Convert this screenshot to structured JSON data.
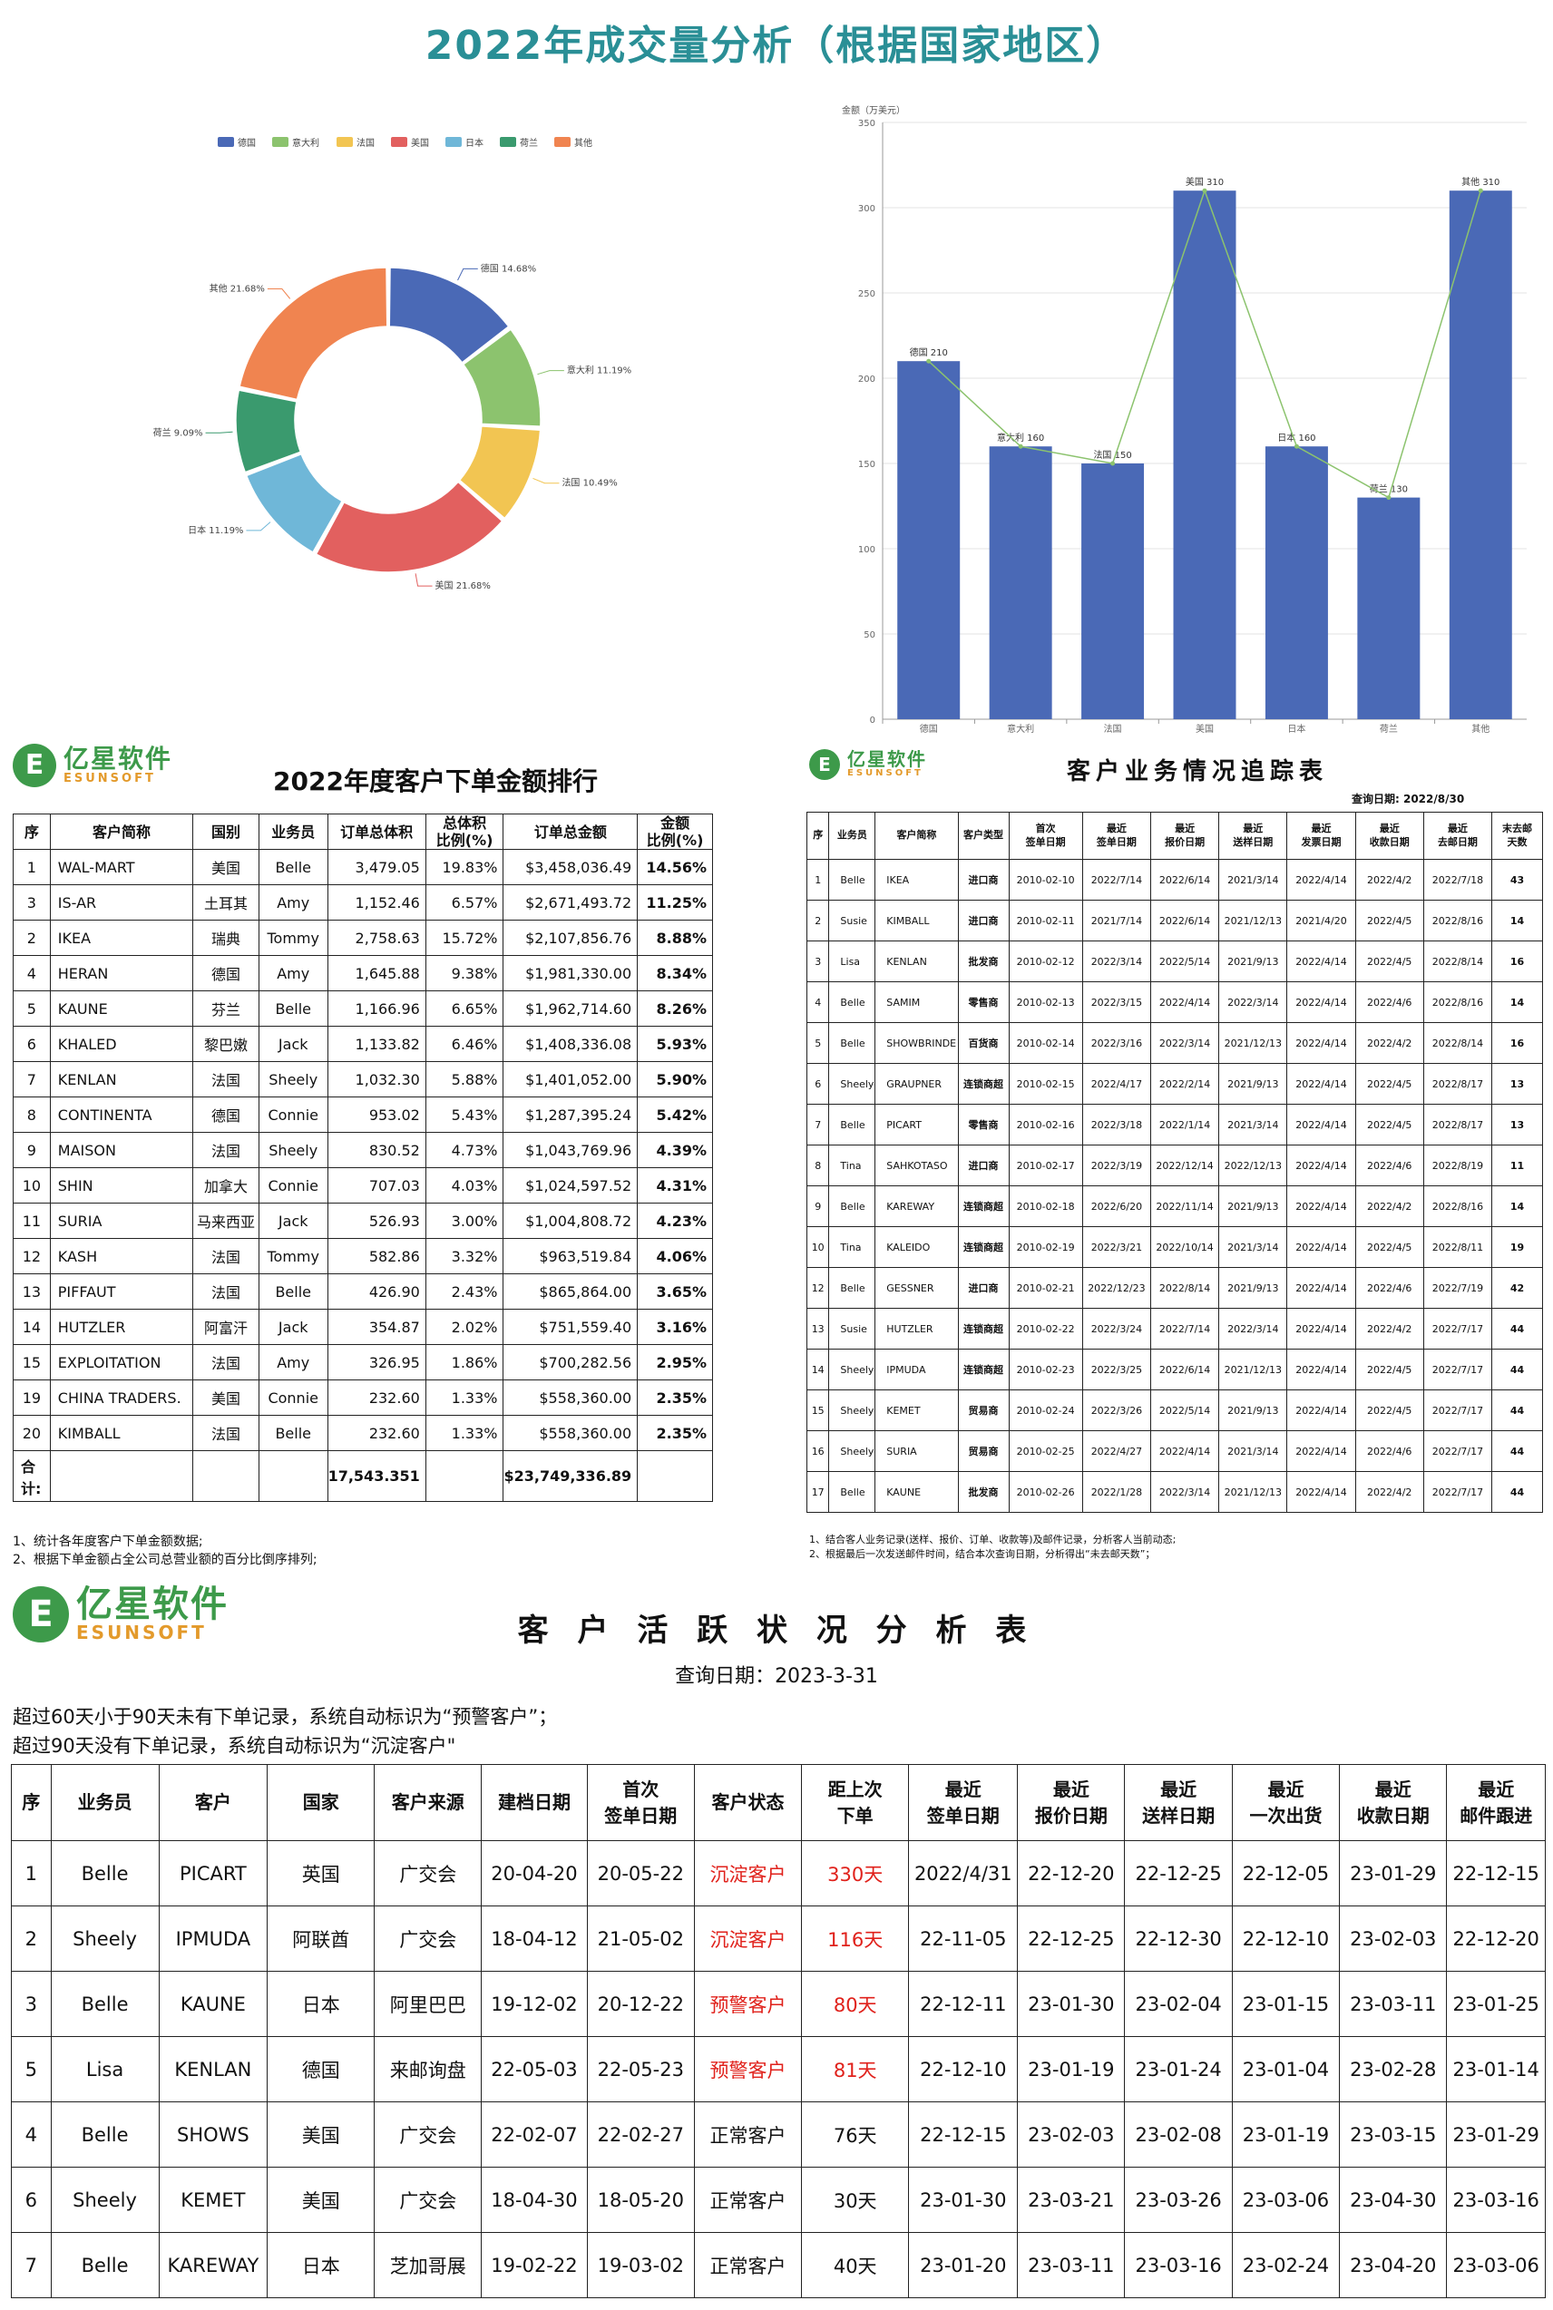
{
  "main_title": "2022年成交量分析（根据国家地区）",
  "chart_data": [
    {
      "type": "pie",
      "legend": [
        "德国",
        "意大利",
        "法国",
        "美国",
        "日本",
        "荷兰",
        "其他"
      ],
      "slices": [
        {
          "name": "德国",
          "value": 14.68,
          "label": "德国 14.68%",
          "color": "#4a69b6"
        },
        {
          "name": "意大利",
          "value": 11.19,
          "label": "意大利 11.19%",
          "color": "#8cc36e"
        },
        {
          "name": "法国",
          "value": 10.49,
          "label": "法国 10.49%",
          "color": "#f2c552"
        },
        {
          "name": "美国",
          "value": 21.68,
          "label": "美国 21.68%",
          "color": "#e2605f"
        },
        {
          "name": "日本",
          "value": 11.19,
          "label": "日本 11.19%",
          "color": "#6fb7d8"
        },
        {
          "name": "荷兰",
          "value": 9.09,
          "label": "荷兰 9.09%",
          "color": "#3a9a6e"
        },
        {
          "name": "其他",
          "value": 21.68,
          "label": "其他 21.68%",
          "color": "#f08450"
        }
      ],
      "legend_position": "top"
    },
    {
      "type": "bar",
      "ylabel": "金额（万美元）",
      "ylim": [
        0,
        350
      ],
      "yticks": [
        0,
        50,
        100,
        150,
        200,
        250,
        300,
        350
      ],
      "categories": [
        "德国",
        "意大利",
        "法国",
        "美国",
        "日本",
        "荷兰",
        "其他"
      ],
      "values": [
        210,
        160,
        150,
        310,
        160,
        130,
        310
      ],
      "data_labels": [
        "德国 210",
        "意大利 160",
        "法国 150",
        "美国 310",
        "日本 160",
        "荷兰 130",
        "其他 310"
      ],
      "bar_color": "#4a69b6",
      "line_color": "#8cc36e",
      "grid": true
    }
  ],
  "logo": {
    "cn": "亿星软件",
    "en": "ESUNSOFT"
  },
  "rank": {
    "title": "2022年度客户下单金额排行",
    "headers": [
      "序",
      "客户简称",
      "国别",
      "业务员",
      "订单总体积",
      "总体积\n比例(%)",
      "订单总金额",
      "金额\n比例(%)"
    ],
    "rows": [
      [
        "1",
        "WAL-MART",
        "美国",
        "Belle",
        "3,479.05",
        "19.83%",
        "$3,458,036.49",
        "14.56%"
      ],
      [
        "3",
        "IS-AR",
        "土耳其",
        "Amy",
        "1,152.46",
        "6.57%",
        "$2,671,493.72",
        "11.25%"
      ],
      [
        "2",
        "IKEA",
        "瑞典",
        "Tommy",
        "2,758.63",
        "15.72%",
        "$2,107,856.76",
        "8.88%"
      ],
      [
        "4",
        "HERAN",
        "德国",
        "Amy",
        "1,645.88",
        "9.38%",
        "$1,981,330.00",
        "8.34%"
      ],
      [
        "5",
        "KAUNE",
        "芬兰",
        "Belle",
        "1,166.96",
        "6.65%",
        "$1,962,714.60",
        "8.26%"
      ],
      [
        "6",
        "KHALED",
        "黎巴嫩",
        "Jack",
        "1,133.82",
        "6.46%",
        "$1,408,336.08",
        "5.93%"
      ],
      [
        "7",
        "KENLAN",
        "法国",
        "Sheely",
        "1,032.30",
        "5.88%",
        "$1,401,052.00",
        "5.90%"
      ],
      [
        "8",
        "CONTINENTA",
        "德国",
        "Connie",
        "953.02",
        "5.43%",
        "$1,287,395.24",
        "5.42%"
      ],
      [
        "9",
        "MAISON",
        "法国",
        "Sheely",
        "830.52",
        "4.73%",
        "$1,043,769.96",
        "4.39%"
      ],
      [
        "10",
        "SHIN",
        "加拿大",
        "Connie",
        "707.03",
        "4.03%",
        "$1,024,597.52",
        "4.31%"
      ],
      [
        "11",
        "SURIA",
        "马来西亚",
        "Jack",
        "526.93",
        "3.00%",
        "$1,004,808.72",
        "4.23%"
      ],
      [
        "12",
        "KASH",
        "法国",
        "Tommy",
        "582.86",
        "3.32%",
        "$963,519.84",
        "4.06%"
      ],
      [
        "13",
        "PIFFAUT",
        "法国",
        "Belle",
        "426.90",
        "2.43%",
        "$865,864.00",
        "3.65%"
      ],
      [
        "14",
        "HUTZLER",
        "阿富汗",
        "Jack",
        "354.87",
        "2.02%",
        "$751,559.40",
        "3.16%"
      ],
      [
        "15",
        "EXPLOITATION",
        "法国",
        "Amy",
        "326.95",
        "1.86%",
        "$700,282.56",
        "2.95%"
      ],
      [
        "19",
        "CHINA TRADERS.",
        "美国",
        "Connie",
        "232.60",
        "1.33%",
        "$558,360.00",
        "2.35%"
      ],
      [
        "20",
        "KIMBALL",
        "法国",
        "Belle",
        "232.60",
        "1.33%",
        "$558,360.00",
        "2.35%"
      ]
    ],
    "total_label": "合计:",
    "total_volume": "17,543.351",
    "total_amount": "$23,749,336.89",
    "notes": [
      "1、统计各年度客户下单金额数据;",
      "2、根据下单金额占全公司总营业额的百分比倒序排列;"
    ]
  },
  "track": {
    "title": "客户业务情况追踪表",
    "query_date": "查询日期:   2022/8/30",
    "headers": [
      "序",
      "业务员",
      "客户简称",
      "客户类型",
      "首次\n签单日期",
      "最近\n签单日期",
      "最近\n报价日期",
      "最近\n送样日期",
      "最近\n发票日期",
      "最近\n收款日期",
      "最近\n去邮日期",
      "末去邮\n天数"
    ],
    "rows": [
      [
        "1",
        "Belle",
        "IKEA",
        "进口商",
        "2010-02-10",
        "2022/7/14",
        "2022/6/14",
        "2021/3/14",
        "2022/4/14",
        "2022/4/2",
        "2022/7/18",
        "43"
      ],
      [
        "2",
        "Susie",
        "KIMBALL",
        "进口商",
        "2010-02-11",
        "2021/7/14",
        "2022/6/14",
        "2021/12/13",
        "2021/4/20",
        "2022/4/5",
        "2022/8/16",
        "14"
      ],
      [
        "3",
        "Lisa",
        "KENLAN",
        "批发商",
        "2010-02-12",
        "2022/3/14",
        "2022/5/14",
        "2021/9/13",
        "2022/4/14",
        "2022/4/5",
        "2022/8/14",
        "16"
      ],
      [
        "4",
        "Belle",
        "SAMIM",
        "零售商",
        "2010-02-13",
        "2022/3/15",
        "2022/4/14",
        "2022/3/14",
        "2022/4/14",
        "2022/4/6",
        "2022/8/16",
        "14"
      ],
      [
        "5",
        "Belle",
        "SHOWBRINDE",
        "百货商",
        "2010-02-14",
        "2022/3/16",
        "2022/3/14",
        "2021/12/13",
        "2022/4/14",
        "2022/4/2",
        "2022/8/14",
        "16"
      ],
      [
        "6",
        "Sheely",
        "GRAUPNER",
        "连锁商超",
        "2010-02-15",
        "2022/4/17",
        "2022/2/14",
        "2021/9/13",
        "2022/4/14",
        "2022/4/5",
        "2022/8/17",
        "13"
      ],
      [
        "7",
        "Belle",
        "PICART",
        "零售商",
        "2010-02-16",
        "2022/3/18",
        "2022/1/14",
        "2021/3/14",
        "2022/4/14",
        "2022/4/5",
        "2022/8/17",
        "13"
      ],
      [
        "8",
        "Tina",
        "SAHKOTASO",
        "进口商",
        "2010-02-17",
        "2022/3/19",
        "2022/12/14",
        "2022/12/13",
        "2022/4/14",
        "2022/4/6",
        "2022/8/19",
        "11"
      ],
      [
        "9",
        "Belle",
        "KAREWAY",
        "连锁商超",
        "2010-02-18",
        "2022/6/20",
        "2022/11/14",
        "2021/9/13",
        "2022/4/14",
        "2022/4/2",
        "2022/8/16",
        "14"
      ],
      [
        "10",
        "Tina",
        "KALEIDO",
        "连锁商超",
        "2010-02-19",
        "2022/3/21",
        "2022/10/14",
        "2021/3/14",
        "2022/4/14",
        "2022/4/5",
        "2022/8/11",
        "19"
      ],
      [
        "12",
        "Belle",
        "GESSNER",
        "进口商",
        "2010-02-21",
        "2022/12/23",
        "2022/8/14",
        "2021/9/13",
        "2022/4/14",
        "2022/4/6",
        "2022/7/19",
        "42"
      ],
      [
        "13",
        "Susie",
        "HUTZLER",
        "连锁商超",
        "2010-02-22",
        "2022/3/24",
        "2022/7/14",
        "2022/3/14",
        "2022/4/14",
        "2022/4/2",
        "2022/7/17",
        "44"
      ],
      [
        "14",
        "Sheely",
        "IPMUDA",
        "连锁商超",
        "2010-02-23",
        "2022/3/25",
        "2022/6/14",
        "2021/12/13",
        "2022/4/14",
        "2022/4/5",
        "2022/7/17",
        "44"
      ],
      [
        "15",
        "Sheely",
        "KEMET",
        "贸易商",
        "2010-02-24",
        "2022/3/26",
        "2022/5/14",
        "2021/9/13",
        "2022/4/14",
        "2022/4/5",
        "2022/7/17",
        "44"
      ],
      [
        "16",
        "Sheely",
        "SURIA",
        "贸易商",
        "2010-02-25",
        "2022/4/27",
        "2022/4/14",
        "2021/3/14",
        "2022/4/14",
        "2022/4/6",
        "2022/7/17",
        "44"
      ],
      [
        "17",
        "Belle",
        "KAUNE",
        "批发商",
        "2010-02-26",
        "2022/1/28",
        "2022/3/14",
        "2021/12/13",
        "2022/4/14",
        "2022/4/2",
        "2022/7/17",
        "44"
      ]
    ],
    "notes": [
      "1、结合客人业务记录(送样、报价、订单、收款等)及邮件记录，分析客人当前动态;",
      "2、根据最后一次发送邮件时间，结合本次查询日期，分析得出“未去邮天数”；"
    ]
  },
  "active": {
    "title": "客 户 活 跃 状 况 分 析 表",
    "query_date": "查询日期：2023-3-31",
    "rules": [
      "超过60天小于90天未有下单记录，系统自动标识为“预警客户”；",
      "超过90天没有下单记录，系统自动标识为“沉淀客户\""
    ],
    "headers": [
      "序",
      "业务员",
      "客户",
      "国家",
      "客户来源",
      "建档日期",
      "首次\n签单日期",
      "客户状态",
      "距上次\n下单",
      "最近\n签单日期",
      "最近\n报价日期",
      "最近\n送样日期",
      "最近\n一次出货",
      "最近\n收款日期",
      "最近\n邮件跟进"
    ],
    "rows": [
      [
        "1",
        "Belle",
        "PICART",
        "英国",
        "广交会",
        "20-04-20",
        "20-05-22",
        "沉淀客户",
        "330天",
        "2022/4/31",
        "22-12-20",
        "22-12-25",
        "22-12-05",
        "23-01-29",
        "22-12-15"
      ],
      [
        "2",
        "Sheely",
        "IPMUDA",
        "阿联酋",
        "广交会",
        "18-04-12",
        "21-05-02",
        "沉淀客户",
        "116天",
        "22-11-05",
        "22-12-25",
        "22-12-30",
        "22-12-10",
        "23-02-03",
        "22-12-20"
      ],
      [
        "3",
        "Belle",
        "KAUNE",
        "日本",
        "阿里巴巴",
        "19-12-02",
        "20-12-22",
        "预警客户",
        "80天",
        "22-12-11",
        "23-01-30",
        "23-02-04",
        "23-01-15",
        "23-03-11",
        "23-01-25"
      ],
      [
        "5",
        "Lisa",
        "KENLAN",
        "德国",
        "来邮询盘",
        "22-05-03",
        "22-05-23",
        "预警客户",
        "81天",
        "22-12-10",
        "23-01-19",
        "23-01-24",
        "23-01-04",
        "23-02-28",
        "23-01-14"
      ],
      [
        "4",
        "Belle",
        "SHOWS",
        "美国",
        "广交会",
        "22-02-07",
        "22-02-27",
        "正常客户",
        "76天",
        "22-12-15",
        "23-02-03",
        "23-02-08",
        "23-01-19",
        "23-03-15",
        "23-01-29"
      ],
      [
        "6",
        "Sheely",
        "KEMET",
        "美国",
        "广交会",
        "18-04-30",
        "18-05-20",
        "正常客户",
        "30天",
        "23-01-30",
        "23-03-21",
        "23-03-26",
        "23-03-06",
        "23-04-30",
        "23-03-16"
      ],
      [
        "7",
        "Belle",
        "KAREWAY",
        "日本",
        "芝加哥展",
        "19-02-22",
        "19-03-02",
        "正常客户",
        "40天",
        "23-01-20",
        "23-03-11",
        "23-03-16",
        "23-02-24",
        "23-04-20",
        "23-03-06"
      ]
    ],
    "alert_color": "#e0211b"
  }
}
